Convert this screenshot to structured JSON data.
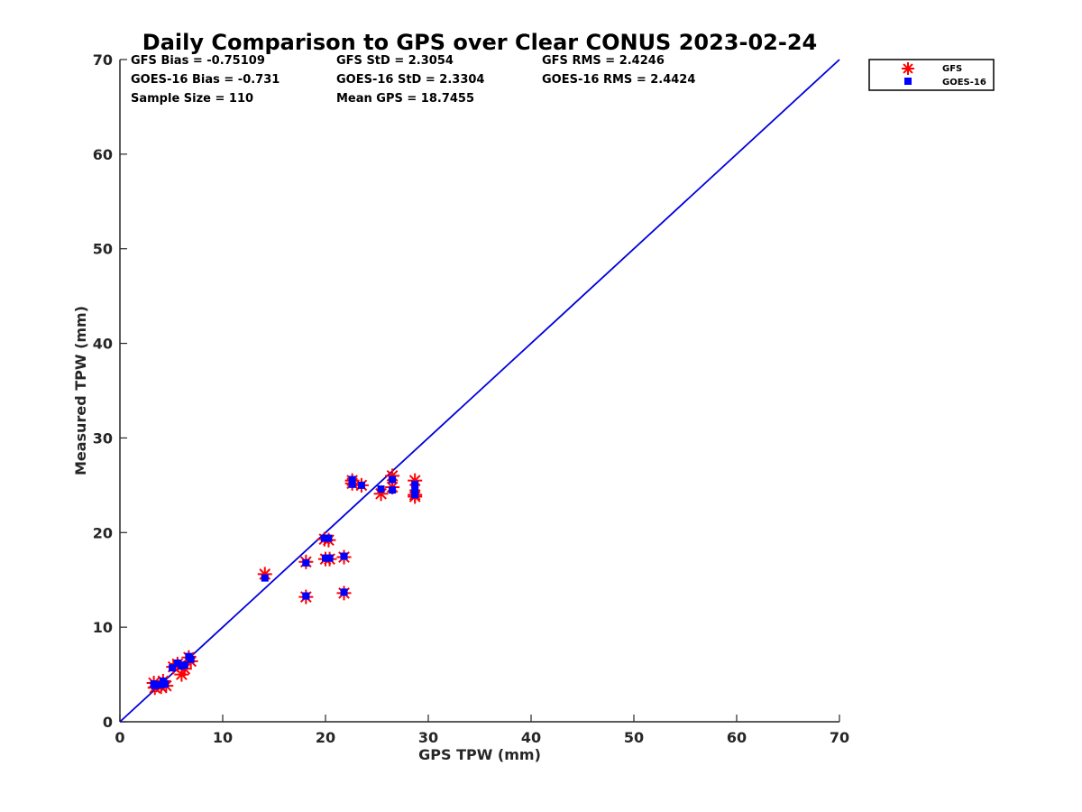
{
  "chart_data": {
    "type": "scatter",
    "title": "Daily Comparison to GPS over Clear CONUS 2023-02-24",
    "xlabel": "GPS TPW (mm)",
    "ylabel": "Measured TPW (mm)",
    "xlim": [
      0,
      70
    ],
    "ylim": [
      0,
      70
    ],
    "xticks": [
      "0",
      "10",
      "20",
      "30",
      "40",
      "50",
      "60",
      "70"
    ],
    "yticks": [
      "0",
      "10",
      "20",
      "30",
      "40",
      "50",
      "60",
      "70"
    ],
    "stats": [
      [
        "GFS Bias = -0.75109",
        "GFS StD = 2.3054",
        "GFS RMS = 2.4246"
      ],
      [
        "GOES-16 Bias = -0.731",
        "GOES-16 StD = 2.3304",
        "GOES-16 RMS = 2.4424"
      ],
      [
        "Sample Size = 110",
        "Mean GPS = 18.7455",
        ""
      ]
    ],
    "legend": {
      "position": "top-right-outside",
      "entries": [
        "GFS",
        "GOES-16"
      ]
    },
    "reference_line": {
      "name": "1:1 line",
      "x": [
        0,
        70
      ],
      "y": [
        0,
        70
      ],
      "color": "#0000dd"
    },
    "series": [
      {
        "name": "GFS",
        "marker": "asterisk",
        "color": "#ff0000",
        "points": [
          [
            3.3,
            4.1
          ],
          [
            3.4,
            3.6
          ],
          [
            4.0,
            3.7
          ],
          [
            4.2,
            4.3
          ],
          [
            4.5,
            3.8
          ],
          [
            5.2,
            5.8
          ],
          [
            5.6,
            6.1
          ],
          [
            6.0,
            5.0
          ],
          [
            6.3,
            5.6
          ],
          [
            6.7,
            6.8
          ],
          [
            6.9,
            6.4
          ],
          [
            14.1,
            15.6
          ],
          [
            18.1,
            16.9
          ],
          [
            18.1,
            13.2
          ],
          [
            19.9,
            19.3
          ],
          [
            20.3,
            19.2
          ],
          [
            20.0,
            17.2
          ],
          [
            20.4,
            17.2
          ],
          [
            21.8,
            17.4
          ],
          [
            21.8,
            13.6
          ],
          [
            22.6,
            25.2
          ],
          [
            22.6,
            25.5
          ],
          [
            23.5,
            25.0
          ],
          [
            25.4,
            24.1
          ],
          [
            26.5,
            26.0
          ],
          [
            26.5,
            24.8
          ],
          [
            28.7,
            25.5
          ],
          [
            28.7,
            24.0
          ],
          [
            28.7,
            23.8
          ]
        ]
      },
      {
        "name": "GOES-16",
        "marker": "square",
        "color": "#0000ff",
        "points": [
          [
            3.3,
            4.0
          ],
          [
            3.4,
            3.8
          ],
          [
            4.0,
            3.9
          ],
          [
            4.2,
            4.3
          ],
          [
            4.4,
            4.0
          ],
          [
            5.1,
            5.7
          ],
          [
            5.6,
            6.2
          ],
          [
            6.0,
            5.9
          ],
          [
            6.3,
            6.0
          ],
          [
            6.7,
            6.9
          ],
          [
            6.9,
            6.6
          ],
          [
            14.1,
            15.2
          ],
          [
            18.1,
            16.8
          ],
          [
            18.1,
            13.3
          ],
          [
            19.9,
            19.4
          ],
          [
            20.3,
            19.4
          ],
          [
            20.0,
            17.3
          ],
          [
            20.4,
            17.3
          ],
          [
            21.8,
            17.5
          ],
          [
            21.8,
            13.7
          ],
          [
            22.6,
            25.6
          ],
          [
            22.6,
            25.1
          ],
          [
            23.5,
            25.0
          ],
          [
            25.4,
            24.6
          ],
          [
            26.5,
            25.6
          ],
          [
            26.5,
            24.5
          ],
          [
            28.7,
            25.1
          ],
          [
            28.7,
            24.5
          ],
          [
            28.7,
            24.0
          ]
        ]
      }
    ]
  }
}
